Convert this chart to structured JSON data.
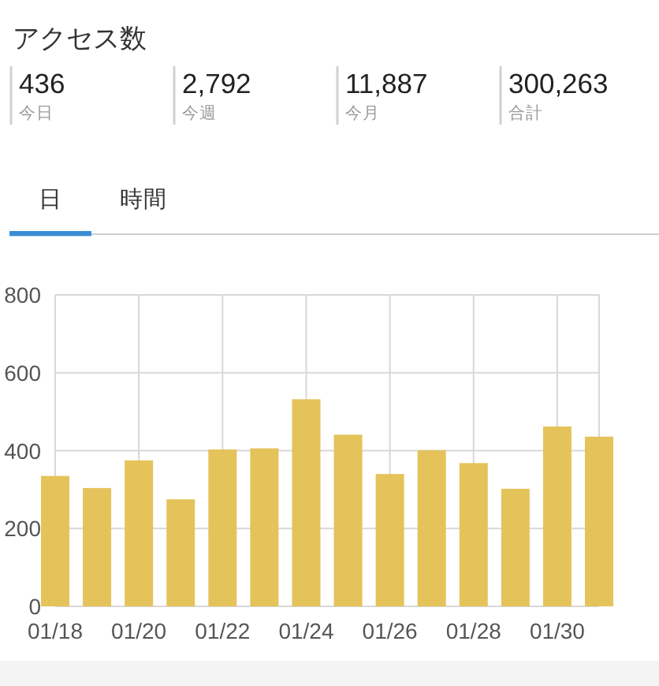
{
  "chart_data": [
    {
      "type": "other",
      "title": "アクセス数",
      "annotations": [
        "436",
        "今日",
        "2,792",
        "今週",
        "11,887",
        "今月",
        "300,263",
        "合計"
      ]
    },
    {
      "type": "other",
      "annotations": [
        "日",
        "時間"
      ]
    },
    {
      "type": "bar",
      "categories": [
        "01/18",
        null,
        "01/20",
        null,
        "01/22",
        null,
        "01/24",
        null,
        "01/26",
        null,
        "01/28",
        null,
        "01/30",
        null
      ],
      "values": [
        335,
        304,
        375,
        275,
        403,
        406,
        532,
        441,
        340,
        401,
        368,
        302,
        462,
        436
      ],
      "color": "#e5c35b",
      "ylim": [
        0,
        800
      ],
      "yticks": [
        0,
        200,
        400,
        600,
        800
      ],
      "grid": true
    }
  ]
}
